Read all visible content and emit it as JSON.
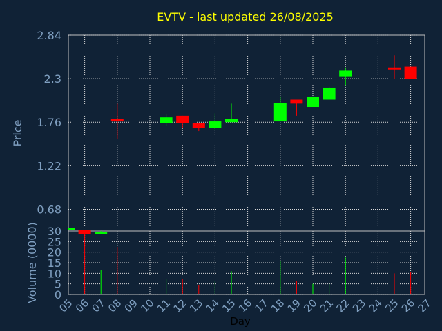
{
  "chart_data": [
    {
      "type": "candlestick",
      "title": "EVTV - last updated 26/08/2025",
      "ylabel": "Price",
      "ylim": [
        0.41,
        2.84
      ],
      "yticks": [
        "2.84",
        "2.3",
        "1.76",
        "1.22",
        "0.68"
      ],
      "grid": true,
      "up_color": "#00ff00",
      "down_color": "#ff0000",
      "candles": [
        {
          "day": "05",
          "open": 0.43,
          "high": 0.45,
          "low": 0.42,
          "close": 0.45
        },
        {
          "day": "06",
          "open": 0.42,
          "high": 0.42,
          "low": 0.36,
          "close": 0.37
        },
        {
          "day": "07",
          "open": 0.38,
          "high": 0.41,
          "low": 0.37,
          "close": 0.4
        },
        {
          "day": "08",
          "open": 1.8,
          "high": 1.99,
          "low": 1.55,
          "close": 1.77
        },
        {
          "day": "11",
          "open": 1.75,
          "high": 1.86,
          "low": 1.72,
          "close": 1.82
        },
        {
          "day": "12",
          "open": 1.84,
          "high": 1.84,
          "low": 1.69,
          "close": 1.75
        },
        {
          "day": "13",
          "open": 1.75,
          "high": 1.75,
          "low": 1.65,
          "close": 1.69
        },
        {
          "day": "14",
          "open": 1.69,
          "high": 1.87,
          "low": 1.69,
          "close": 1.77
        },
        {
          "day": "15",
          "open": 1.76,
          "high": 1.99,
          "low": 1.76,
          "close": 1.8
        },
        {
          "day": "18",
          "open": 1.77,
          "high": 2.08,
          "low": 1.77,
          "close": 2.0
        },
        {
          "day": "19",
          "open": 2.04,
          "high": 2.04,
          "low": 1.84,
          "close": 1.99
        },
        {
          "day": "20",
          "open": 1.95,
          "high": 2.08,
          "low": 1.95,
          "close": 2.07
        },
        {
          "day": "21",
          "open": 2.04,
          "high": 2.2,
          "low": 2.04,
          "close": 2.19
        },
        {
          "day": "22",
          "open": 2.33,
          "high": 2.44,
          "low": 2.22,
          "close": 2.4
        },
        {
          "day": "25",
          "open": 2.44,
          "high": 2.59,
          "low": 2.3,
          "close": 2.42
        },
        {
          "day": "26",
          "open": 2.45,
          "high": 2.45,
          "low": 2.3,
          "close": 2.3
        }
      ]
    },
    {
      "type": "bar",
      "ylabel": "Volume (0000)",
      "ylim": [
        0,
        30
      ],
      "yticks": [
        "30",
        "25",
        "20",
        "15",
        "10",
        "5",
        "0"
      ],
      "grid": true,
      "xlabel": "Day",
      "xticks": [
        "05",
        "06",
        "07",
        "08",
        "09",
        "10",
        "11",
        "12",
        "13",
        "14",
        "15",
        "16",
        "17",
        "18",
        "19",
        "20",
        "21",
        "22",
        "23",
        "24",
        "25",
        "26",
        "27"
      ],
      "volumes": [
        {
          "day": "05",
          "value": 0,
          "color": "#00ff00"
        },
        {
          "day": "06",
          "value": 30,
          "color": "#ff0000"
        },
        {
          "day": "07",
          "value": 11.5,
          "color": "#00ff00"
        },
        {
          "day": "08",
          "value": 22.5,
          "color": "#ff0000"
        },
        {
          "day": "11",
          "value": 7.5,
          "color": "#00ff00"
        },
        {
          "day": "12",
          "value": 7.5,
          "color": "#ff0000"
        },
        {
          "day": "13",
          "value": 4.5,
          "color": "#ff0000"
        },
        {
          "day": "14",
          "value": 6.5,
          "color": "#00ff00"
        },
        {
          "day": "15",
          "value": 11,
          "color": "#00ff00"
        },
        {
          "day": "18",
          "value": 16,
          "color": "#00ff00"
        },
        {
          "day": "19",
          "value": 6.5,
          "color": "#ff0000"
        },
        {
          "day": "20",
          "value": 5,
          "color": "#00ff00"
        },
        {
          "day": "21",
          "value": 5,
          "color": "#00ff00"
        },
        {
          "day": "22",
          "value": 17.5,
          "color": "#00ff00"
        },
        {
          "day": "25",
          "value": 10,
          "color": "#ff0000"
        },
        {
          "day": "26",
          "value": 10.5,
          "color": "#ff0000"
        }
      ]
    }
  ]
}
